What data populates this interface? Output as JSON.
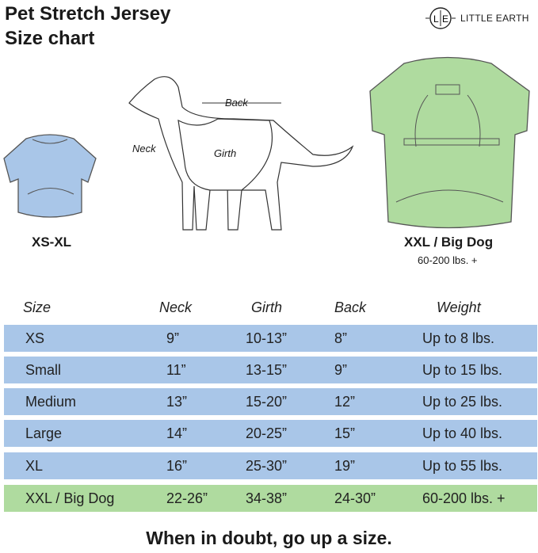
{
  "title": {
    "line1": "Pet Stretch Jersey",
    "line2": "Size chart"
  },
  "brand": {
    "name": "LITTLE EARTH",
    "monogram": "L|E"
  },
  "illustrations": {
    "small_label": "XS-XL",
    "big_label": "XXL / Big Dog",
    "big_sub": "60-200 lbs. +",
    "dog_labels": {
      "neck": "Neck",
      "back": "Back",
      "girth": "Girth"
    }
  },
  "colors": {
    "standard": "#a9c6e8",
    "big": "#afdb9f"
  },
  "table": {
    "headers": [
      "Size",
      "Neck",
      "Girth",
      "Back",
      "Weight"
    ],
    "rows": [
      [
        "XS",
        "9”",
        "10-13”",
        "8”",
        "Up to 8 lbs."
      ],
      [
        "Small",
        "11”",
        "13-15”",
        "9”",
        "Up to 15 lbs."
      ],
      [
        "Medium",
        "13”",
        "15-20”",
        "12”",
        "Up to 25 lbs."
      ],
      [
        "Large",
        "14”",
        "20-25”",
        "15”",
        "Up to 40 lbs."
      ],
      [
        "XL",
        "16”",
        "25-30”",
        "19”",
        "Up to 55 lbs."
      ],
      [
        "XXL / Big Dog",
        "22-26”",
        "34-38”",
        "24-30”",
        "60-200 lbs. +"
      ]
    ]
  },
  "footer": "When in doubt, go up a size."
}
